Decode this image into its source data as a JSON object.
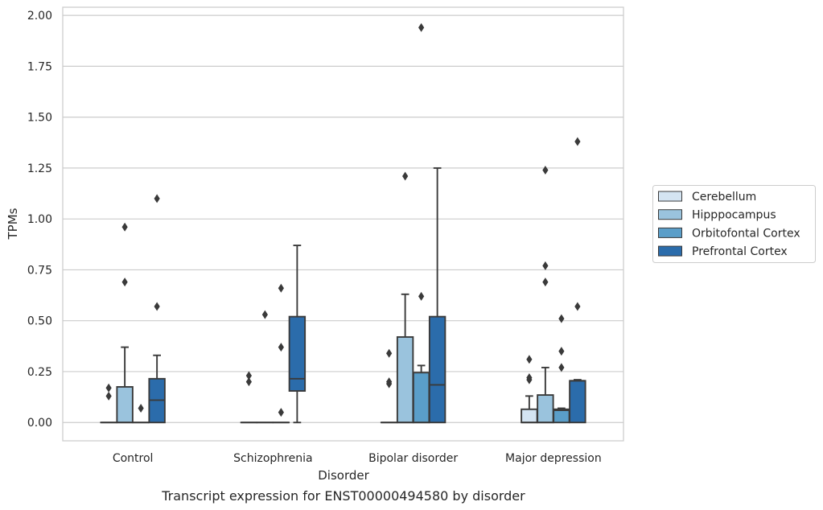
{
  "caption": "Transcript expression for ENST00000494580 by disorder",
  "chart_data": {
    "type": "box",
    "xlabel": "Disorder",
    "ylabel": "TPMs",
    "categories": [
      "Control",
      "Schizophrenia",
      "Bipolar disorder",
      "Major depression"
    ],
    "yticks": [
      "0.00",
      "0.25",
      "0.50",
      "0.75",
      "1.00",
      "1.25",
      "1.50",
      "1.75",
      "2.00"
    ],
    "ylim": [
      -0.09,
      2.04
    ],
    "grid": "horizontal",
    "legend_position": "right",
    "hue_colors": [
      "#d4e4f2",
      "#9ac3dd",
      "#5a9ec9",
      "#2b6cab"
    ],
    "series": [
      {
        "name": "Cerebellum",
        "boxes": [
          {
            "q1": 0,
            "median": 0,
            "q3": 0,
            "whislo": 0,
            "whishi": 0,
            "fliers": [
              0.13,
              0.17
            ]
          },
          {
            "q1": 0,
            "median": 0,
            "q3": 0,
            "whislo": 0,
            "whishi": 0,
            "fliers": [
              0.2,
              0.23
            ]
          },
          {
            "q1": 0,
            "median": 0,
            "q3": 0,
            "whislo": 0,
            "whishi": 0,
            "fliers": [
              0.19,
              0.2,
              0.34
            ]
          },
          {
            "q1": 0,
            "median": 0,
            "q3": 0.065,
            "whislo": 0,
            "whishi": 0.13,
            "fliers": [
              0.21,
              0.22,
              0.31
            ]
          }
        ]
      },
      {
        "name": "Hipppocampus",
        "boxes": [
          {
            "q1": 0,
            "median": 0,
            "q3": 0.175,
            "whislo": 0,
            "whishi": 0.37,
            "fliers": [
              0.69,
              0.96
            ]
          },
          {
            "q1": 0,
            "median": 0,
            "q3": 0,
            "whislo": 0,
            "whishi": 0,
            "fliers": [
              0.53
            ]
          },
          {
            "q1": 0,
            "median": 0,
            "q3": 0.42,
            "whislo": 0,
            "whishi": 0.63,
            "fliers": [
              1.21
            ]
          },
          {
            "q1": 0,
            "median": 0,
            "q3": 0.135,
            "whislo": 0,
            "whishi": 0.27,
            "fliers": [
              0.69,
              0.77,
              1.24
            ]
          }
        ]
      },
      {
        "name": "Orbitofontal Cortex",
        "boxes": [
          {
            "q1": 0,
            "median": 0,
            "q3": 0,
            "whislo": 0,
            "whishi": 0,
            "fliers": [
              0.07
            ]
          },
          {
            "q1": 0,
            "median": 0,
            "q3": 0,
            "whislo": 0,
            "whishi": 0,
            "fliers": [
              0.05,
              0.37,
              0.66
            ]
          },
          {
            "q1": 0,
            "median": 0,
            "q3": 0.245,
            "whislo": 0,
            "whishi": 0.28,
            "fliers": [
              0.62,
              1.94
            ]
          },
          {
            "q1": 0,
            "median": 0.06,
            "q3": 0.065,
            "whislo": 0,
            "whishi": 0.07,
            "fliers": [
              0.27,
              0.35,
              0.51
            ]
          }
        ]
      },
      {
        "name": "Prefrontal Cortex",
        "boxes": [
          {
            "q1": 0,
            "median": 0.11,
            "q3": 0.215,
            "whislo": 0,
            "whishi": 0.33,
            "fliers": [
              0.57,
              1.1
            ]
          },
          {
            "q1": 0.155,
            "median": 0.215,
            "q3": 0.52,
            "whislo": 0,
            "whishi": 0.87,
            "fliers": []
          },
          {
            "q1": 0,
            "median": 0.185,
            "q3": 0.52,
            "whislo": 0,
            "whishi": 1.25,
            "fliers": []
          },
          {
            "q1": 0,
            "median": 0.205,
            "q3": 0.205,
            "whislo": 0,
            "whishi": 0.21,
            "fliers": [
              0.57,
              1.38
            ]
          }
        ]
      }
    ]
  }
}
